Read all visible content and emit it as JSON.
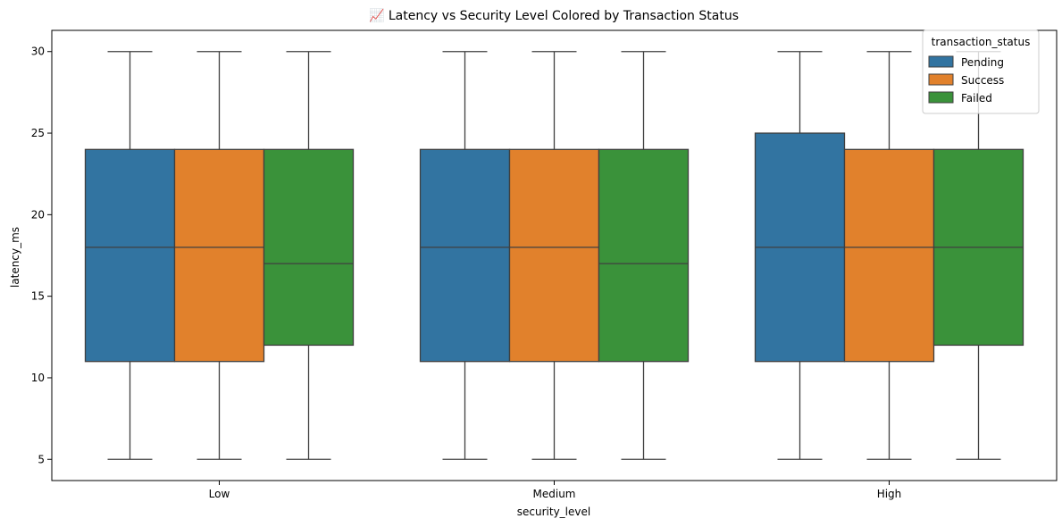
{
  "chart_data": {
    "type": "box",
    "title": "📈 Latency vs Security Level Colored by Transaction Status",
    "xlabel": "security_level",
    "ylabel": "latency_ms",
    "ylim": [
      3.7,
      31.3
    ],
    "yticks": [
      5,
      10,
      15,
      20,
      25,
      30
    ],
    "grid": false,
    "categories": [
      "Low",
      "Medium",
      "High"
    ],
    "legend": {
      "title": "transaction_status",
      "placement": "top-right"
    },
    "series": [
      {
        "name": "Pending",
        "color": "#3274a1",
        "boxes": [
          {
            "whisker_low": 5,
            "q1": 11,
            "median": 18,
            "q3": 24,
            "whisker_high": 30
          },
          {
            "whisker_low": 5,
            "q1": 11,
            "median": 18,
            "q3": 24,
            "whisker_high": 30
          },
          {
            "whisker_low": 5,
            "q1": 11,
            "median": 18,
            "q3": 25,
            "whisker_high": 30
          }
        ]
      },
      {
        "name": "Success",
        "color": "#e1812c",
        "boxes": [
          {
            "whisker_low": 5,
            "q1": 11,
            "median": 18,
            "q3": 24,
            "whisker_high": 30
          },
          {
            "whisker_low": 5,
            "q1": 11,
            "median": 18,
            "q3": 24,
            "whisker_high": 30
          },
          {
            "whisker_low": 5,
            "q1": 11,
            "median": 18,
            "q3": 24,
            "whisker_high": 30
          }
        ]
      },
      {
        "name": "Failed",
        "color": "#3a923a",
        "boxes": [
          {
            "whisker_low": 5,
            "q1": 12,
            "median": 17,
            "q3": 24,
            "whisker_high": 30
          },
          {
            "whisker_low": 5,
            "q1": 11,
            "median": 17,
            "q3": 24,
            "whisker_high": 30
          },
          {
            "whisker_low": 5,
            "q1": 12,
            "median": 18,
            "q3": 24,
            "whisker_high": 30
          }
        ]
      }
    ]
  }
}
